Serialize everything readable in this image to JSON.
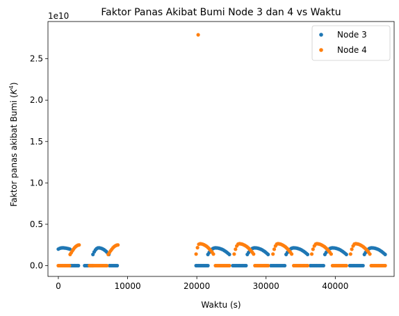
{
  "chart_data": {
    "type": "scatter",
    "title": "Faktor Panas Akibat Bumi Node 3 dan 4 vs Waktu",
    "xlabel": "Waktu (s)",
    "ylabel_main": "Faktor panas akibat Bumi (",
    "ylabel_math": "K",
    "ylabel_sup": "4",
    "ylabel_end": ")",
    "y_offset_text": "1e10",
    "xlim": [
      -1500,
      48500
    ],
    "ylim": [
      -0.13,
      2.95
    ],
    "y_scale": 10000000000.0,
    "x_ticks": [
      0,
      10000,
      20000,
      30000,
      40000
    ],
    "x_tick_labels": [
      "0",
      "10000",
      "20000",
      "30000",
      "40000"
    ],
    "y_ticks": [
      0.0,
      0.5,
      1.0,
      1.5,
      2.0,
      2.5
    ],
    "y_tick_labels": [
      "0.0",
      "0.5",
      "1.0",
      "1.5",
      "2.0",
      "2.5"
    ],
    "legend_position": "top-right",
    "series": [
      {
        "name": "Node 3",
        "color": "#1f77b4",
        "segments": [
          {
            "type": "arc",
            "x_start": 0,
            "x_end": 1650,
            "y_peak": 0.215,
            "y_low": 0.2,
            "n": 10
          },
          {
            "type": "flat",
            "x_start": 1700,
            "x_end": 2900,
            "y": 0.0,
            "n": 10
          },
          {
            "type": "flat",
            "x_start": 3800,
            "x_end": 5000,
            "y": 0.0,
            "n": 8
          },
          {
            "type": "arc",
            "x_start": 5000,
            "x_end": 7300,
            "y_peak": 0.215,
            "y_low": 0.135,
            "n": 14
          },
          {
            "type": "flat",
            "x_start": 7400,
            "x_end": 8500,
            "y": 0.0,
            "n": 8
          },
          {
            "type": "flat",
            "x_start": 19900,
            "x_end": 21600,
            "y": 0.0,
            "n": 11
          },
          {
            "type": "arc",
            "x_start": 21600,
            "x_end": 24700,
            "y_peak": 0.215,
            "y_low": 0.135,
            "n": 18
          },
          {
            "type": "flat",
            "x_start": 25200,
            "x_end": 27100,
            "y": 0.0,
            "n": 11
          },
          {
            "type": "arc",
            "x_start": 27300,
            "x_end": 30300,
            "y_peak": 0.215,
            "y_low": 0.135,
            "n": 18
          },
          {
            "type": "flat",
            "x_start": 30700,
            "x_end": 32700,
            "y": 0.0,
            "n": 11
          },
          {
            "type": "arc",
            "x_start": 32900,
            "x_end": 36000,
            "y_peak": 0.215,
            "y_low": 0.135,
            "n": 18
          },
          {
            "type": "flat",
            "x_start": 36400,
            "x_end": 38300,
            "y": 0.0,
            "n": 11
          },
          {
            "type": "arc",
            "x_start": 38500,
            "x_end": 41600,
            "y_peak": 0.215,
            "y_low": 0.135,
            "n": 18
          },
          {
            "type": "flat",
            "x_start": 42100,
            "x_end": 44000,
            "y": 0.0,
            "n": 11
          },
          {
            "type": "arc",
            "x_start": 44200,
            "x_end": 47200,
            "y_peak": 0.215,
            "y_low": 0.135,
            "n": 18
          }
        ]
      },
      {
        "name": "Node 4",
        "color": "#ff7f0e",
        "segments": [
          {
            "type": "flat",
            "x_start": 0,
            "x_end": 1600,
            "y": 0.0,
            "n": 10
          },
          {
            "type": "rise",
            "x_start": 1700,
            "x_end": 3000,
            "y_start": 0.135,
            "y_end": 0.25,
            "n": 9
          },
          {
            "type": "flat",
            "x_start": 4500,
            "x_end": 7000,
            "y": 0.0,
            "n": 14
          },
          {
            "type": "rise",
            "x_start": 7200,
            "x_end": 8600,
            "y_start": 0.135,
            "y_end": 0.25,
            "n": 9
          },
          {
            "type": "point",
            "x": 20200,
            "y": 2.79
          },
          {
            "type": "arc",
            "x_start": 19900,
            "x_end": 22400,
            "y_peak": 0.265,
            "y_low": 0.14,
            "n": 14,
            "peak_at": 0.2
          },
          {
            "type": "flat",
            "x_start": 22700,
            "x_end": 24700,
            "y": 0.0,
            "n": 11
          },
          {
            "type": "arc",
            "x_start": 25400,
            "x_end": 28200,
            "y_peak": 0.265,
            "y_low": 0.14,
            "n": 16,
            "peak_at": 0.25
          },
          {
            "type": "flat",
            "x_start": 28400,
            "x_end": 30300,
            "y": 0.0,
            "n": 11
          },
          {
            "type": "arc",
            "x_start": 31000,
            "x_end": 33700,
            "y_peak": 0.265,
            "y_low": 0.14,
            "n": 16,
            "peak_at": 0.25
          },
          {
            "type": "flat",
            "x_start": 34000,
            "x_end": 36000,
            "y": 0.0,
            "n": 11
          },
          {
            "type": "arc",
            "x_start": 36600,
            "x_end": 39400,
            "y_peak": 0.265,
            "y_low": 0.14,
            "n": 16,
            "peak_at": 0.25
          },
          {
            "type": "flat",
            "x_start": 39600,
            "x_end": 41600,
            "y": 0.0,
            "n": 11
          },
          {
            "type": "arc",
            "x_start": 42200,
            "x_end": 45000,
            "y_peak": 0.265,
            "y_low": 0.14,
            "n": 16,
            "peak_at": 0.25
          },
          {
            "type": "flat",
            "x_start": 45200,
            "x_end": 47200,
            "y": 0.0,
            "n": 11
          }
        ]
      }
    ]
  }
}
